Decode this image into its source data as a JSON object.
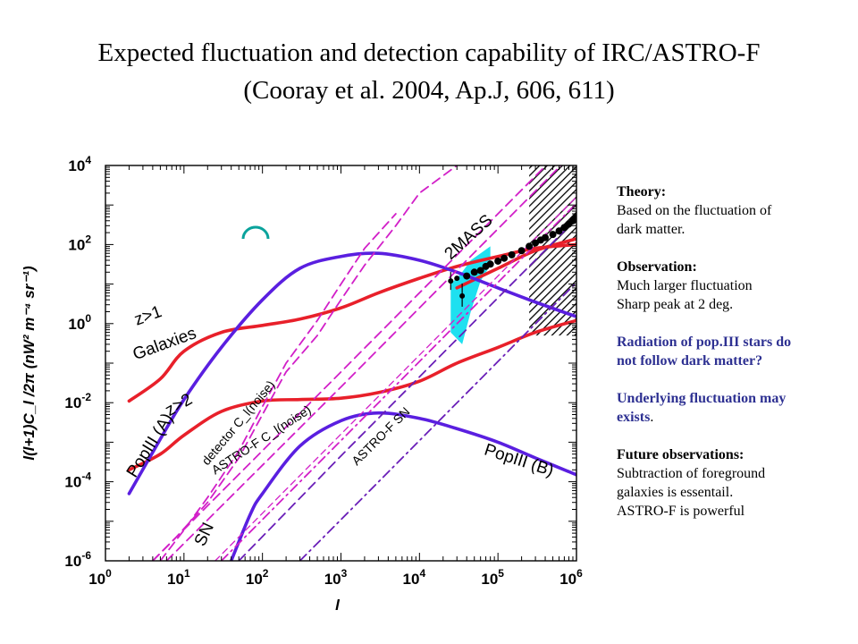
{
  "slide": {
    "title_line1": "Expected fluctuation and detection capability of IRC/ASTRO-F",
    "title_line2": "(Cooray et al. 2004, Ap.J, 606, 611)"
  },
  "notes": {
    "theory_heading": "Theory:",
    "theory_text1": "Based on the fluctuation of",
    "theory_text2": "dark matter.",
    "obs_heading": "Observation:",
    "obs_text1": "Much larger fluctuation",
    "obs_text2": "Sharp peak at 2 deg.",
    "popiii_q1": "Radiation of pop.III stars do",
    "popiii_q2": "not follow dark matter?",
    "underlying1": "Underlying fluctuation may",
    "underlying2": "exists",
    "underlying_dot": ".",
    "future_heading": "Future observations:",
    "future1": "Subtraction of foreground",
    "future2": "galaxies is essentail.",
    "future3": "ASTRO-F is powerful"
  },
  "colors": {
    "galaxies": "#e8202a",
    "popiii": "#5a1fe0",
    "detector_noise": "#d21fc8",
    "astrof": "#6a1fb8",
    "data": "#000000",
    "band": "#1ee0f0",
    "marker": "#0aa39c"
  },
  "chart_data": {
    "type": "line",
    "xlabel": "l",
    "ylabel": "l(l+1)C_l /2π (nW² m⁻⁴ sr⁻¹)",
    "xscale": "log",
    "yscale": "log",
    "xlim": [
      1,
      1000000
    ],
    "ylim": [
      1e-06,
      10000
    ],
    "x_ticks": [
      {
        "value": 1,
        "base": "10",
        "exp": "0"
      },
      {
        "value": 10,
        "base": "10",
        "exp": "1"
      },
      {
        "value": 100,
        "base": "10",
        "exp": "2"
      },
      {
        "value": 1000,
        "base": "10",
        "exp": "3"
      },
      {
        "value": 10000,
        "base": "10",
        "exp": "4"
      },
      {
        "value": 100000,
        "base": "10",
        "exp": "5"
      },
      {
        "value": 1000000,
        "base": "10",
        "exp": "6"
      }
    ],
    "y_ticks": [
      {
        "value": 1e-06,
        "base": "10",
        "exp": "-6"
      },
      {
        "value": 0.0001,
        "base": "10",
        "exp": "-4"
      },
      {
        "value": 0.01,
        "base": "10",
        "exp": "-2"
      },
      {
        "value": 1,
        "base": "10",
        "exp": "0"
      },
      {
        "value": 100,
        "base": "10",
        "exp": "2"
      },
      {
        "value": 10000,
        "base": "10",
        "exp": "4"
      }
    ],
    "series": [
      {
        "name": "z>1 Galaxies",
        "kind": "galaxies",
        "style": "solid",
        "x": [
          2,
          5,
          10,
          30,
          100,
          300,
          1000,
          3000,
          10000,
          30000,
          100000,
          300000,
          1000000
        ],
        "y": [
          0.011,
          0.04,
          0.2,
          0.6,
          0.9,
          1.3,
          2.5,
          6,
          14,
          28,
          50,
          80,
          100
        ]
      },
      {
        "name": "z>2",
        "kind": "galaxies",
        "style": "solid",
        "x": [
          2,
          5,
          10,
          30,
          100,
          300,
          1000,
          3000,
          10000,
          30000,
          100000,
          300000,
          1000000
        ],
        "y": [
          0.0002,
          0.0005,
          0.0015,
          0.006,
          0.011,
          0.012,
          0.013,
          0.018,
          0.035,
          0.1,
          0.25,
          0.6,
          1.2
        ]
      },
      {
        "name": "2MASS",
        "kind": "galaxies",
        "style": "solid",
        "x": [
          30000,
          100000,
          300000,
          1000000
        ],
        "y": [
          8,
          25,
          70,
          140
        ]
      },
      {
        "name": "PopIII (A)",
        "kind": "popiii",
        "style": "solid",
        "x": [
          2,
          5,
          10,
          30,
          100,
          300,
          1000,
          3000,
          10000,
          30000,
          100000,
          300000,
          1000000
        ],
        "y": [
          5e-05,
          0.0012,
          0.012,
          0.25,
          4,
          25,
          50,
          60,
          40,
          20,
          8,
          3.5,
          1.5
        ]
      },
      {
        "name": "PopIII (B)",
        "kind": "popiii",
        "style": "solid",
        "x": [
          40,
          70,
          100,
          300,
          1000,
          3000,
          10000,
          30000,
          100000,
          300000,
          1000000
        ],
        "y": [
          1e-06,
          1.5e-05,
          5e-05,
          0.0008,
          0.0035,
          0.0055,
          0.004,
          0.0022,
          0.001,
          0.0004,
          0.00015
        ]
      },
      {
        "name": "detector C_l(noise)",
        "kind": "detector_noise",
        "style": "dashed",
        "x": [
          6,
          1000,
          100000,
          1000000
        ],
        "y": [
          1e-06,
          0.025,
          250,
          25000
        ]
      },
      {
        "name": "",
        "kind": "detector_noise",
        "style": "dashed",
        "x": [
          4,
          1000,
          100000,
          1000000
        ],
        "y": [
          1e-06,
          0.06,
          600,
          60000
        ]
      },
      {
        "name": "",
        "kind": "detector_noise",
        "style": "thin-dashed",
        "x": [
          25,
          1000,
          100000,
          1000000
        ],
        "y": [
          1e-06,
          0.0016,
          16,
          1600
        ]
      },
      {
        "name": "",
        "kind": "detector_noise",
        "style": "dashed",
        "x": [
          4,
          8,
          20,
          50,
          100,
          200,
          500,
          1000,
          2000,
          5000,
          10000,
          30000
        ],
        "y": [
          1e-06,
          4e-06,
          3e-05,
          0.0004,
          0.005,
          0.06,
          0.5,
          4,
          30,
          300,
          2000,
          10000
        ]
      },
      {
        "name": "",
        "kind": "detector_noise",
        "style": "dashed",
        "x": [
          5,
          10,
          20,
          50,
          100,
          200,
          500,
          1000,
          2000,
          5000
        ],
        "y": [
          1e-06,
          6e-06,
          4e-05,
          0.0006,
          0.008,
          0.1,
          1.2,
          10,
          80,
          600
        ]
      },
      {
        "name": "ASTRO-F C_l(noise)",
        "kind": "astrof",
        "style": "dashed",
        "x": [
          50,
          1000,
          100000,
          1000000
        ],
        "y": [
          1e-06,
          0.00045,
          4.5,
          450
        ]
      },
      {
        "name": "ASTRO-F SN",
        "kind": "astrof",
        "style": "dash-dot",
        "x": [
          300,
          1000,
          100000,
          1000000
        ],
        "y": [
          1e-06,
          1.1e-05,
          0.11,
          11
        ]
      },
      {
        "name": "SN",
        "kind": "detector_noise",
        "style": "dash-dot",
        "x": [
          30,
          1000,
          100000,
          1000000
        ],
        "y": [
          1e-06,
          0.0011,
          11,
          1100
        ]
      }
    ],
    "observations": {
      "name": "",
      "x": [
        25000,
        30000,
        35000,
        40000,
        50000,
        60000,
        70000,
        80000,
        100000,
        120000,
        150000,
        200000,
        250000,
        300000,
        350000,
        400000,
        500000,
        600000,
        700000,
        800000,
        900000,
        1000000
      ],
      "y": [
        12,
        14,
        5,
        16,
        20,
        22,
        28,
        32,
        38,
        45,
        55,
        70,
        90,
        110,
        130,
        150,
        180,
        220,
        270,
        330,
        400,
        500
      ]
    },
    "band": {
      "x": [
        25000,
        35000,
        45000,
        60000,
        80000
      ],
      "y_low": [
        0.6,
        0.3,
        2,
        12,
        30
      ],
      "y_high": [
        10,
        20,
        40,
        60,
        90
      ]
    },
    "hatched_region": {
      "x": [
        250000,
        1000000
      ],
      "y": [
        0.5,
        10000
      ]
    },
    "annotations": [
      {
        "text": "z>1",
        "x": 2.5,
        "y": 0.9,
        "rotate": -20
      },
      {
        "text": "Galaxies",
        "x": 2.4,
        "y": 0.12,
        "rotate": -20
      },
      {
        "text": "PopIII (A)",
        "x": 2.4,
        "y": 0.00012,
        "rotate": -58
      },
      {
        "text": "z>2",
        "x": 6.5,
        "y": 0.0045,
        "rotate": -30
      },
      {
        "text": "detector C_l(noise)",
        "x": 20,
        "y": 0.00025,
        "rotate": -50
      },
      {
        "text": "ASTRO-F C_l(noise)",
        "x": 25,
        "y": 0.00015,
        "rotate": -33
      },
      {
        "text": "ASTRO-F SN",
        "x": 1600,
        "y": 0.00025,
        "rotate": -45
      },
      {
        "text": "SN",
        "x": 18,
        "y": 2.2e-06,
        "rotate": -65
      },
      {
        "text": "PopIII (B)",
        "x": 65000,
        "y": 0.0005,
        "rotate": 18
      },
      {
        "text": "2MASS",
        "x": 25000,
        "y": 40,
        "rotate": -42
      }
    ]
  }
}
